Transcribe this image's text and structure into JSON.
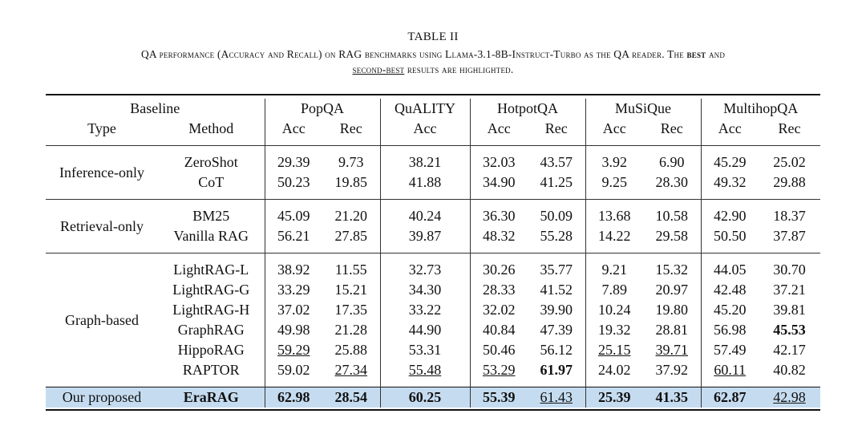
{
  "caption": {
    "label": "TABLE II",
    "line1_pre": "QA performance (Accuracy and Recall) on RAG benchmarks using Llama-3.1-8B-Instruct-Turbo as the QA reader. The ",
    "best": "best",
    "line1_post": " and",
    "second_best": "second-best",
    "line2_post": " results are highlighted."
  },
  "header": {
    "baseline": "Baseline",
    "type": "Type",
    "method": "Method",
    "datasets": [
      "PopQA",
      "QuALITY",
      "HotpotQA",
      "MuSiQue",
      "MultihopQA"
    ],
    "acc": "Acc",
    "rec": "Rec"
  },
  "groups": {
    "inference": "Inference-only",
    "retrieval": "Retrieval-only",
    "graph": "Graph-based",
    "proposed": "Our proposed"
  },
  "rows": [
    {
      "method": "ZeroShot",
      "v": [
        "29.39",
        "9.73",
        "38.21",
        "32.03",
        "43.57",
        "3.92",
        "6.90",
        "45.29",
        "25.02"
      ]
    },
    {
      "method": "CoT",
      "v": [
        "50.23",
        "19.85",
        "41.88",
        "34.90",
        "41.25",
        "9.25",
        "28.30",
        "49.32",
        "29.88"
      ]
    },
    {
      "method": "BM25",
      "v": [
        "45.09",
        "21.20",
        "40.24",
        "36.30",
        "50.09",
        "13.68",
        "10.58",
        "42.90",
        "18.37"
      ]
    },
    {
      "method": "Vanilla RAG",
      "v": [
        "56.21",
        "27.85",
        "39.87",
        "48.32",
        "55.28",
        "14.22",
        "29.58",
        "50.50",
        "37.87"
      ]
    },
    {
      "method": "LightRAG-L",
      "v": [
        "38.92",
        "11.55",
        "32.73",
        "30.26",
        "35.77",
        "9.21",
        "15.32",
        "44.05",
        "30.70"
      ]
    },
    {
      "method": "LightRAG-G",
      "v": [
        "33.29",
        "15.21",
        "34.30",
        "28.33",
        "41.52",
        "7.89",
        "20.97",
        "42.48",
        "37.21"
      ]
    },
    {
      "method": "LightRAG-H",
      "v": [
        "37.02",
        "17.35",
        "33.22",
        "32.02",
        "39.90",
        "10.24",
        "19.80",
        "45.20",
        "39.81"
      ]
    },
    {
      "method": "GraphRAG",
      "v": [
        "49.98",
        "21.28",
        "44.90",
        "40.84",
        "47.39",
        "19.32",
        "28.81",
        "56.98",
        "45.53"
      ]
    },
    {
      "method": "HippoRAG",
      "v": [
        "59.29",
        "25.88",
        "53.31",
        "50.46",
        "56.12",
        "25.15",
        "39.71",
        "57.49",
        "42.17"
      ]
    },
    {
      "method": "RAPTOR",
      "v": [
        "59.02",
        "27.34",
        "55.48",
        "53.29",
        "61.97",
        "24.02",
        "37.92",
        "60.11",
        "40.82"
      ]
    },
    {
      "method": "EraRAG",
      "v": [
        "62.98",
        "28.54",
        "60.25",
        "55.39",
        "61.43",
        "25.39",
        "41.35",
        "62.87",
        "42.98"
      ]
    }
  ],
  "highlight_color": "#c5dcf0"
}
